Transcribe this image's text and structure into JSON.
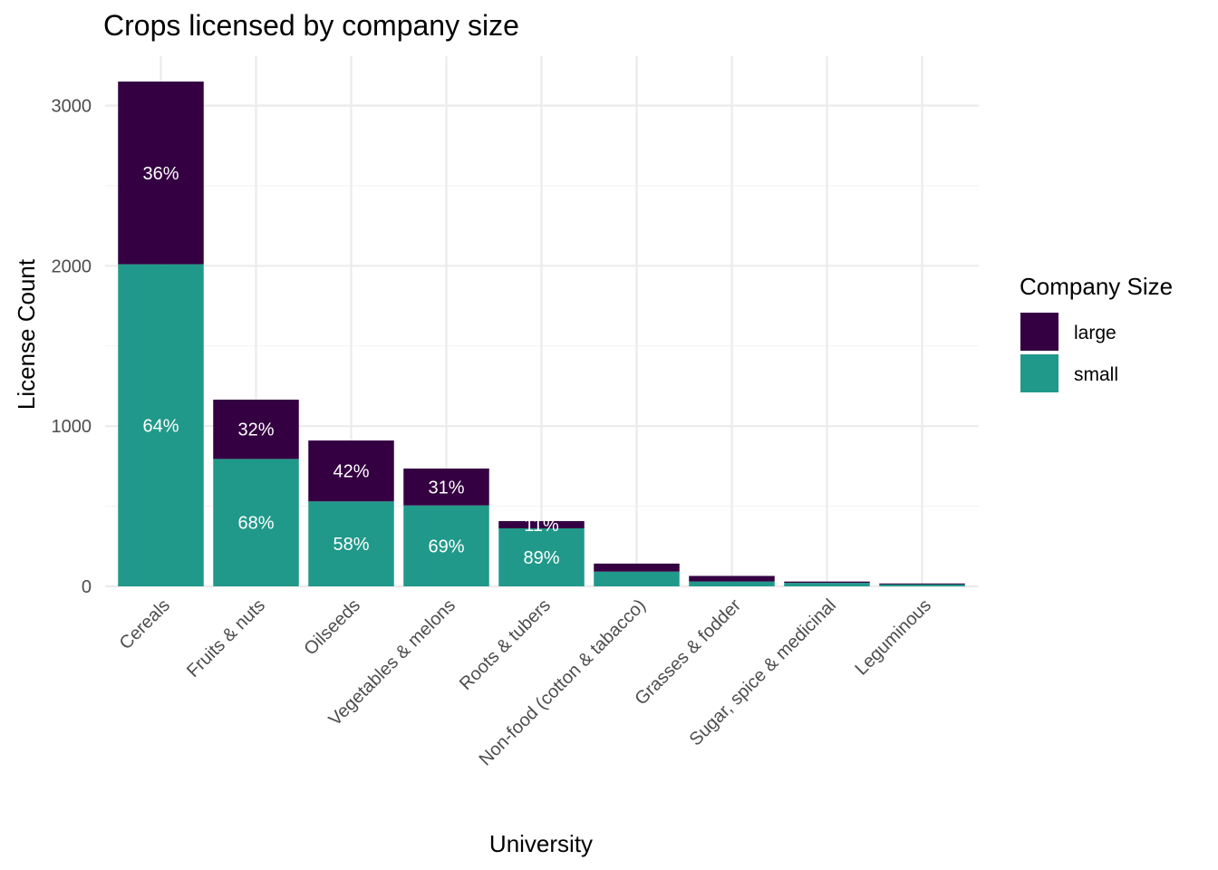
{
  "chart_data": {
    "type": "bar",
    "stacked": true,
    "title": "Crops licensed by company size",
    "xlabel": "University",
    "ylabel": "License Count",
    "ylim": [
      0,
      3300
    ],
    "yticks": [
      0,
      1000,
      2000,
      3000
    ],
    "grid": true,
    "legend": {
      "title": "Company Size",
      "position": "right"
    },
    "categories": [
      "Cereals",
      "Fruits & nuts",
      "Oilseeds",
      "Vegetables & melons",
      "Roots & tubers",
      "Non-food (cotton & tabacco)",
      "Grasses & fodder",
      "Sugar, spice & medicinal",
      "Leguminous"
    ],
    "series": [
      {
        "name": "small",
        "color": "#21998a",
        "values": [
          2010,
          795,
          530,
          505,
          362,
          92,
          30,
          22,
          12
        ],
        "labels": [
          "64%",
          "68%",
          "58%",
          "69%",
          "89%",
          "",
          "",
          "",
          ""
        ]
      },
      {
        "name": "large",
        "color": "#340042",
        "values": [
          1140,
          370,
          380,
          230,
          45,
          50,
          35,
          8,
          6
        ],
        "labels": [
          "36%",
          "32%",
          "42%",
          "31%",
          "11%",
          "",
          "",
          "",
          ""
        ]
      }
    ]
  }
}
